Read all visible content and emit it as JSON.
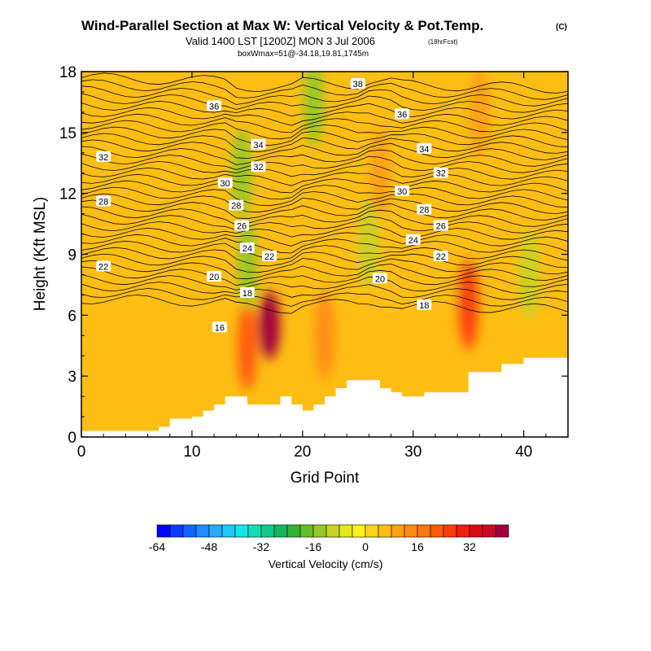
{
  "header": {
    "title": "Wind-Parallel Section at Max W: Vertical Velocity & Pot.Temp.",
    "title_mark": "(C)",
    "subtitle": "Valid 1400 LST [1200Z] MON 3 Jul 2006",
    "subtitle_note": "(18hrFcst)",
    "box_info": "boxWmax=51@-34.18,19.81,1745m"
  },
  "chart_data": {
    "type": "heatmap",
    "title": "Wind-Parallel Section at Max W: Vertical Velocity & Pot.Temp.",
    "xlabel": "Grid Point",
    "ylabel": "Height (Kft MSL)",
    "xlim": [
      0,
      44
    ],
    "ylim": [
      0,
      18
    ],
    "x_ticks": [
      "0",
      "10",
      "20",
      "30",
      "40"
    ],
    "y_ticks": [
      "0",
      "3",
      "6",
      "9",
      "12",
      "15",
      "18"
    ],
    "colorbar": {
      "label": "Vertical Velocity (cm/s)",
      "tick_labels": [
        "-64",
        "-48",
        "-32",
        "-16",
        "0",
        "16",
        "32"
      ],
      "levels": [
        -64,
        -60,
        -56,
        -52,
        -48,
        -44,
        -40,
        -36,
        -32,
        -28,
        -24,
        -20,
        -16,
        -12,
        -8,
        -4,
        0,
        4,
        8,
        12,
        16,
        20,
        24,
        28,
        32,
        36,
        40
      ],
      "colors": [
        "#0000ff",
        "#0a3cff",
        "#1464ff",
        "#1e8cff",
        "#28aaff",
        "#1ec8ff",
        "#14e6e6",
        "#14dcb4",
        "#14c88c",
        "#14b45a",
        "#32b432",
        "#64be28",
        "#96c828",
        "#c8d228",
        "#e6e61e",
        "#fff01e",
        "#ffd21e",
        "#ffbe14",
        "#ffa014",
        "#ff8c14",
        "#ff7814",
        "#ff5a0a",
        "#ff3c0a",
        "#f01e0a",
        "#dc0a0a",
        "#c80a28",
        "#a0003c"
      ]
    },
    "vertical_velocity_features": [
      {
        "x": 17,
        "y_kft": 5.5,
        "w_cm_s": 40
      },
      {
        "x": 15,
        "y_kft": 4.5,
        "w_cm_s": 20
      },
      {
        "x": 22,
        "y_kft": 5,
        "w_cm_s": 12
      },
      {
        "x": 35,
        "y_kft": 6.5,
        "w_cm_s": 24
      },
      {
        "x": 36,
        "y_kft": 16,
        "w_cm_s": 10
      },
      {
        "x": 27,
        "y_kft": 13,
        "w_cm_s": 10
      },
      {
        "x": 14.5,
        "y_kft": 13,
        "w_cm_s": -16
      },
      {
        "x": 15,
        "y_kft": 8.5,
        "w_cm_s": -14
      },
      {
        "x": 21,
        "y_kft": 16.5,
        "w_cm_s": -14
      },
      {
        "x": 26,
        "y_kft": 9.5,
        "w_cm_s": -12
      },
      {
        "x": 40.5,
        "y_kft": 8,
        "w_cm_s": -12
      }
    ],
    "theta_contours": {
      "interval_C": 1,
      "labels": [
        {
          "text": "38",
          "x": 25,
          "y_kft": 17.4
        },
        {
          "text": "36",
          "x": 12,
          "y_kft": 16.3
        },
        {
          "text": "36",
          "x": 29,
          "y_kft": 15.9
        },
        {
          "text": "34",
          "x": 16,
          "y_kft": 14.4
        },
        {
          "text": "34",
          "x": 31,
          "y_kft": 14.2
        },
        {
          "text": "32",
          "x": 2,
          "y_kft": 13.8
        },
        {
          "text": "32",
          "x": 16,
          "y_kft": 13.3
        },
        {
          "text": "32",
          "x": 32.5,
          "y_kft": 13.0
        },
        {
          "text": "30",
          "x": 13,
          "y_kft": 12.5
        },
        {
          "text": "30",
          "x": 29,
          "y_kft": 12.1
        },
        {
          "text": "28",
          "x": 2,
          "y_kft": 11.6
        },
        {
          "text": "28",
          "x": 14,
          "y_kft": 11.4
        },
        {
          "text": "28",
          "x": 31,
          "y_kft": 11.2
        },
        {
          "text": "26",
          "x": 14.5,
          "y_kft": 10.4
        },
        {
          "text": "26",
          "x": 32.5,
          "y_kft": 10.4
        },
        {
          "text": "24",
          "x": 15,
          "y_kft": 9.3
        },
        {
          "text": "24",
          "x": 30,
          "y_kft": 9.7
        },
        {
          "text": "22",
          "x": 2,
          "y_kft": 8.4
        },
        {
          "text": "22",
          "x": 17,
          "y_kft": 8.9
        },
        {
          "text": "22",
          "x": 32.5,
          "y_kft": 8.9
        },
        {
          "text": "20",
          "x": 12,
          "y_kft": 7.9
        },
        {
          "text": "20",
          "x": 27,
          "y_kft": 7.8
        },
        {
          "text": "18",
          "x": 15,
          "y_kft": 7.1
        },
        {
          "text": "18",
          "x": 31,
          "y_kft": 6.5
        },
        {
          "text": "16",
          "x": 12.5,
          "y_kft": 5.4
        }
      ]
    },
    "terrain_kft": [
      0.3,
      0.3,
      0.3,
      0.3,
      0.3,
      0.3,
      0.3,
      0.5,
      0.9,
      0.9,
      1.0,
      1.3,
      1.6,
      2.0,
      2.0,
      1.6,
      1.6,
      1.6,
      2.0,
      1.6,
      1.3,
      1.6,
      2.0,
      2.4,
      2.8,
      2.8,
      2.8,
      2.4,
      2.2,
      2.0,
      2.0,
      2.2,
      2.2,
      2.2,
      2.2,
      3.2,
      3.2,
      3.2,
      3.6,
      3.6,
      3.9,
      3.9,
      3.9,
      3.9,
      3.9
    ]
  }
}
